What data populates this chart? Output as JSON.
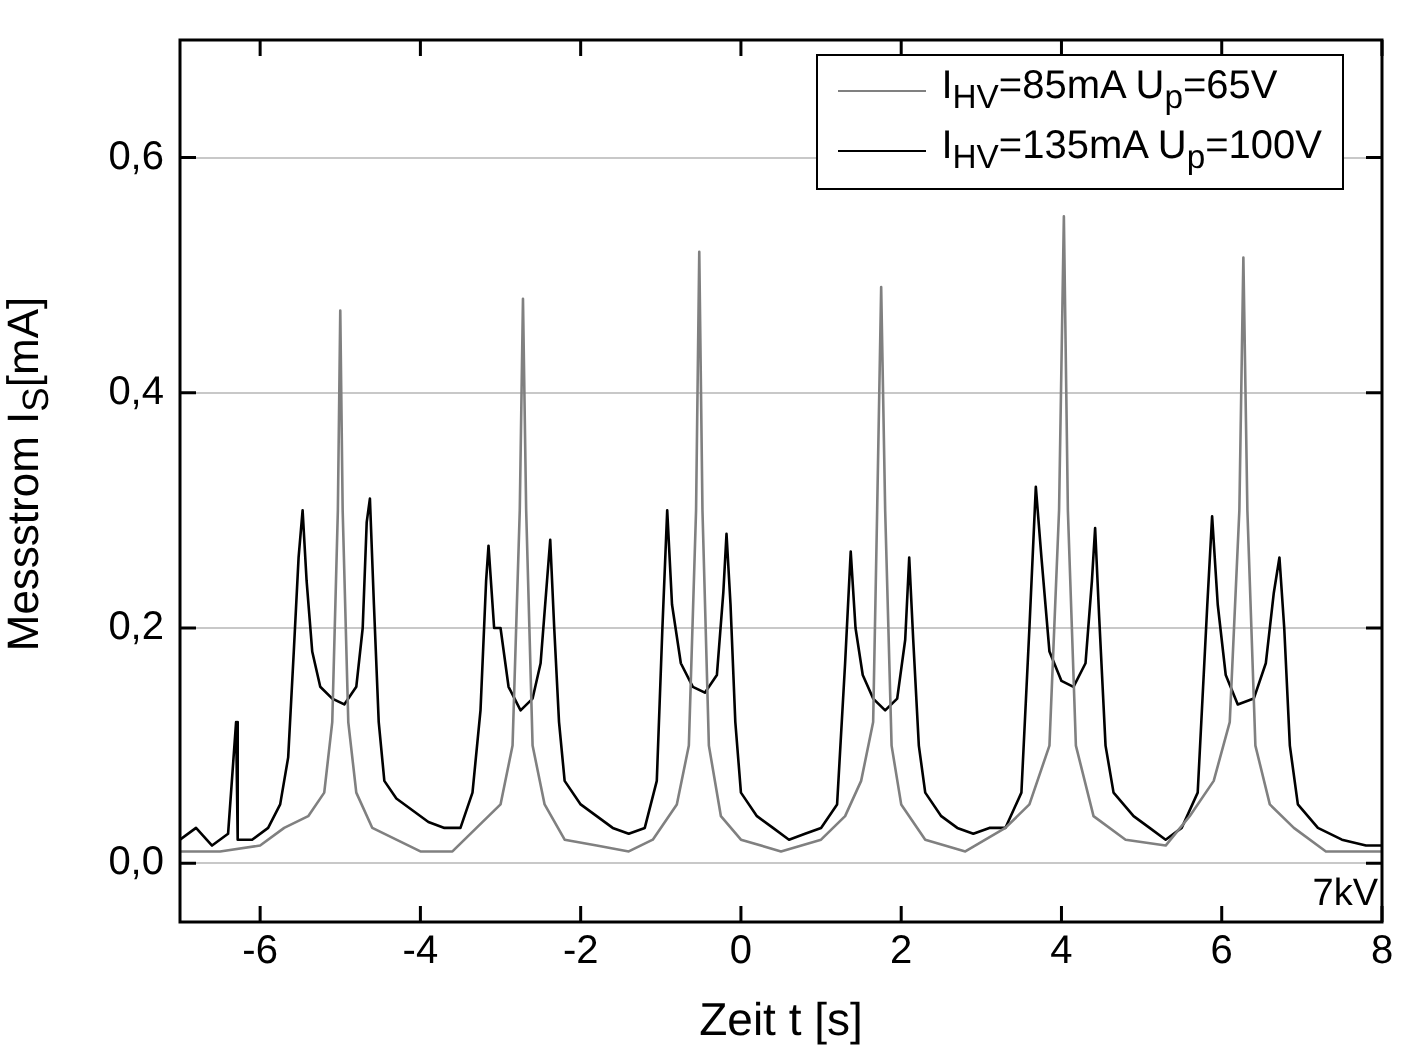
{
  "chart_data": {
    "type": "line",
    "xlabel": "Zeit t [s]",
    "ylabel": "Messstrom I$_{S}$[mA]",
    "xlim": [
      -7,
      8
    ],
    "xticks": [
      -6,
      -4,
      -2,
      0,
      2,
      4,
      6,
      8
    ],
    "ylim": [
      -0.05,
      0.7
    ],
    "yticks": [
      {
        "value": 0,
        "label": "0,0"
      },
      {
        "value": 0.2,
        "label": "0,2"
      },
      {
        "value": 0.4,
        "label": "0,4"
      },
      {
        "value": 0.6,
        "label": "0,6"
      }
    ],
    "grid": "y",
    "legend": "top right",
    "marker": "none",
    "line_style": "solid",
    "annotations": [
      "7kV"
    ],
    "series": [
      {
        "name": "I$_{HV}$=85mA U$_{p}$=65V",
        "color": "#808080",
        "x": [
          -7.0,
          -6.5,
          -6.0,
          -5.7,
          -5.4,
          -5.2,
          -5.1,
          -5.03,
          -5.0,
          -4.97,
          -4.9,
          -4.8,
          -4.6,
          -4.3,
          -4.0,
          -3.6,
          -3.3,
          -3.0,
          -2.85,
          -2.76,
          -2.72,
          -2.68,
          -2.6,
          -2.45,
          -2.2,
          -1.8,
          -1.4,
          -1.1,
          -0.8,
          -0.65,
          -0.56,
          -0.52,
          -0.48,
          -0.4,
          -0.25,
          0.0,
          0.5,
          1.0,
          1.3,
          1.5,
          1.65,
          1.7,
          1.75,
          1.8,
          1.88,
          2.0,
          2.3,
          2.8,
          3.3,
          3.6,
          3.85,
          3.97,
          4.03,
          4.08,
          4.18,
          4.4,
          4.8,
          5.3,
          5.6,
          5.9,
          6.1,
          6.22,
          6.27,
          6.32,
          6.42,
          6.6,
          6.9,
          7.3,
          7.7,
          8.0
        ],
        "values": [
          0.01,
          0.01,
          0.015,
          0.03,
          0.04,
          0.06,
          0.12,
          0.3,
          0.47,
          0.3,
          0.12,
          0.06,
          0.03,
          0.02,
          0.01,
          0.01,
          0.03,
          0.05,
          0.1,
          0.3,
          0.48,
          0.3,
          0.1,
          0.05,
          0.02,
          0.015,
          0.01,
          0.02,
          0.05,
          0.1,
          0.3,
          0.52,
          0.3,
          0.1,
          0.04,
          0.02,
          0.01,
          0.02,
          0.04,
          0.07,
          0.12,
          0.3,
          0.49,
          0.3,
          0.1,
          0.05,
          0.02,
          0.01,
          0.03,
          0.05,
          0.1,
          0.3,
          0.55,
          0.3,
          0.1,
          0.04,
          0.02,
          0.015,
          0.04,
          0.07,
          0.12,
          0.3,
          0.515,
          0.3,
          0.1,
          0.05,
          0.03,
          0.01,
          0.01,
          0.01
        ]
      },
      {
        "name": "I$_{HV}$=135mA U$_{p}$=100V",
        "color": "#000000",
        "x": [
          -7.0,
          -6.8,
          -6.6,
          -6.4,
          -6.3,
          -6.28,
          -6.1,
          -5.9,
          -5.75,
          -5.65,
          -5.58,
          -5.52,
          -5.47,
          -5.42,
          -5.35,
          -5.25,
          -5.1,
          -4.95,
          -4.8,
          -4.72,
          -4.67,
          -4.63,
          -4.58,
          -4.52,
          -4.45,
          -4.3,
          -4.1,
          -3.9,
          -3.7,
          -3.5,
          -3.35,
          -3.25,
          -3.18,
          -3.15,
          -3.08,
          -3.0,
          -2.9,
          -2.75,
          -2.6,
          -2.5,
          -2.42,
          -2.38,
          -2.33,
          -2.27,
          -2.2,
          -2.0,
          -1.8,
          -1.6,
          -1.4,
          -1.2,
          -1.05,
          -0.98,
          -0.92,
          -0.86,
          -0.75,
          -0.6,
          -0.45,
          -0.3,
          -0.22,
          -0.18,
          -0.13,
          -0.07,
          0.0,
          0.2,
          0.4,
          0.6,
          0.8,
          1.0,
          1.2,
          1.3,
          1.37,
          1.43,
          1.52,
          1.65,
          1.8,
          1.95,
          2.05,
          2.1,
          2.15,
          2.22,
          2.3,
          2.5,
          2.7,
          2.9,
          3.1,
          3.3,
          3.5,
          3.6,
          3.68,
          3.75,
          3.85,
          4.0,
          4.15,
          4.3,
          4.38,
          4.42,
          4.47,
          4.55,
          4.65,
          4.9,
          5.1,
          5.3,
          5.5,
          5.7,
          5.82,
          5.88,
          5.95,
          6.05,
          6.2,
          6.4,
          6.55,
          6.65,
          6.72,
          6.78,
          6.85,
          6.95,
          7.2,
          7.5,
          7.8,
          8.0
        ],
        "values": [
          0.02,
          0.03,
          0.015,
          0.025,
          0.12,
          0.02,
          0.02,
          0.03,
          0.05,
          0.09,
          0.18,
          0.26,
          0.3,
          0.24,
          0.18,
          0.15,
          0.14,
          0.135,
          0.15,
          0.2,
          0.29,
          0.31,
          0.22,
          0.12,
          0.07,
          0.055,
          0.045,
          0.035,
          0.03,
          0.03,
          0.06,
          0.13,
          0.24,
          0.27,
          0.2,
          0.2,
          0.15,
          0.13,
          0.14,
          0.17,
          0.24,
          0.275,
          0.2,
          0.12,
          0.07,
          0.05,
          0.04,
          0.03,
          0.025,
          0.03,
          0.07,
          0.2,
          0.3,
          0.22,
          0.17,
          0.15,
          0.145,
          0.16,
          0.23,
          0.28,
          0.22,
          0.12,
          0.06,
          0.04,
          0.03,
          0.02,
          0.025,
          0.03,
          0.05,
          0.17,
          0.265,
          0.2,
          0.16,
          0.14,
          0.13,
          0.14,
          0.19,
          0.26,
          0.19,
          0.1,
          0.06,
          0.04,
          0.03,
          0.025,
          0.03,
          0.03,
          0.06,
          0.2,
          0.32,
          0.26,
          0.18,
          0.155,
          0.15,
          0.17,
          0.24,
          0.285,
          0.21,
          0.1,
          0.06,
          0.04,
          0.03,
          0.02,
          0.03,
          0.06,
          0.22,
          0.295,
          0.22,
          0.16,
          0.135,
          0.14,
          0.17,
          0.23,
          0.26,
          0.2,
          0.1,
          0.05,
          0.03,
          0.02,
          0.015,
          0.015
        ]
      }
    ]
  }
}
